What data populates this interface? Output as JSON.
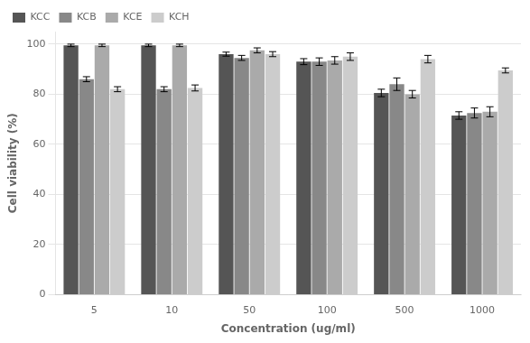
{
  "chart_data": {
    "type": "bar",
    "xlabel": "Concentration (ug/ml)",
    "ylabel": "Cell viability (%)",
    "categories": [
      "5",
      "10",
      "50",
      "100",
      "500",
      "1000"
    ],
    "series": [
      {
        "name": "KCC",
        "color": "#555555",
        "values": [
          99.5,
          99.5,
          96.0,
          93.0,
          80.5,
          71.5
        ],
        "errors": [
          0.5,
          0.5,
          0.8,
          1.2,
          1.5,
          1.5
        ]
      },
      {
        "name": "KCB",
        "color": "#888888",
        "values": [
          86.0,
          82.0,
          94.5,
          93.0,
          84.0,
          72.5
        ],
        "errors": [
          1.0,
          1.0,
          1.0,
          1.5,
          2.5,
          2.0
        ]
      },
      {
        "name": "KCE",
        "color": "#aaaaaa",
        "values": [
          99.5,
          99.5,
          97.5,
          93.5,
          80.0,
          73.0
        ],
        "errors": [
          0.5,
          0.5,
          1.0,
          1.5,
          1.5,
          2.0
        ]
      },
      {
        "name": "KCH",
        "color": "#cccccc",
        "values": [
          82.0,
          82.5,
          96.0,
          95.0,
          94.0,
          89.5
        ],
        "errors": [
          1.0,
          1.2,
          1.0,
          1.5,
          1.5,
          1.0
        ]
      }
    ],
    "ylim": [
      0,
      105
    ],
    "yticks": [
      0,
      20,
      40,
      60,
      80,
      100
    ],
    "grid": true,
    "legend": "upper left"
  }
}
